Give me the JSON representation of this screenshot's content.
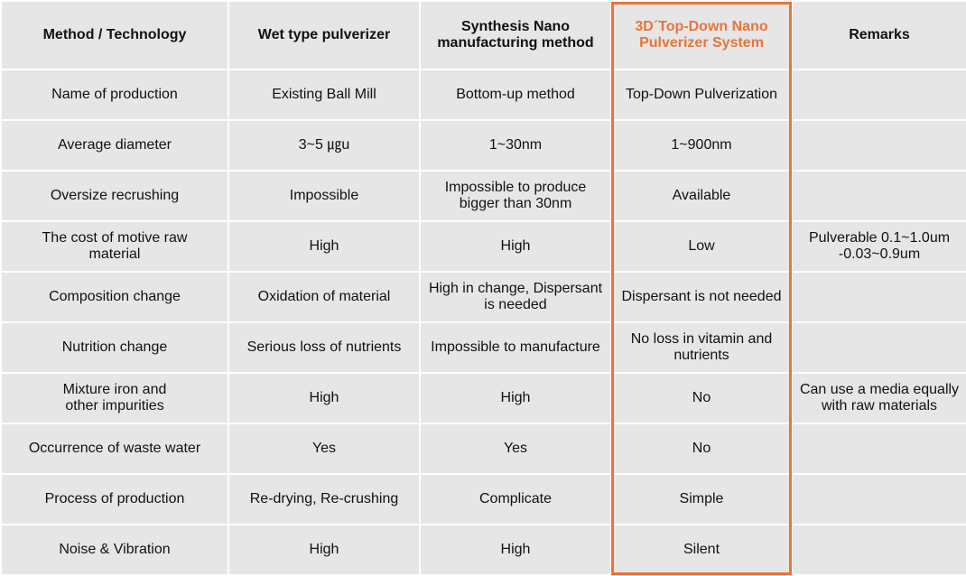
{
  "columns": [
    "Method / Technology",
    "Wet type pulverizer",
    "Synthesis Nano\nmanufacturing method",
    "3D´Top-Down Nano\nPulverizer System",
    "Remarks"
  ],
  "highlight_color": "#e8743b",
  "rows": [
    [
      "Name of production",
      "Existing Ball Mill",
      "Bottom-up method",
      "Top-Down Pulverization",
      ""
    ],
    [
      "Average diameter",
      "3~5 ㎍u",
      "1~30nm",
      "1~900nm",
      ""
    ],
    [
      "Oversize recrushing",
      "Impossible",
      "Impossible to produce\nbigger than 30nm",
      "Available",
      ""
    ],
    [
      "The cost of motive raw\nmaterial",
      "High",
      "High",
      "Low",
      "Pulverable 0.1~1.0um\n-0.03~0.9um"
    ],
    [
      "Composition change",
      "Oxidation of material",
      "High in change, Dispersant\nis needed",
      "Dispersant is not needed",
      ""
    ],
    [
      "Nutrition change",
      "Serious loss of nutrients",
      "Impossible to manufacture",
      "No loss in vitamin and\nnutrients",
      ""
    ],
    [
      "Mixture iron and\nother impurities",
      "High",
      "High",
      "No",
      "Can use a media equally\nwith raw materials"
    ],
    [
      "Occurrence of waste water",
      "Yes",
      "Yes",
      "No",
      ""
    ],
    [
      "Process of production",
      "Re-drying, Re-crushing",
      "Complicate",
      "Simple",
      ""
    ],
    [
      "Noise & Vibration",
      "High",
      "High",
      "Silent",
      ""
    ]
  ]
}
